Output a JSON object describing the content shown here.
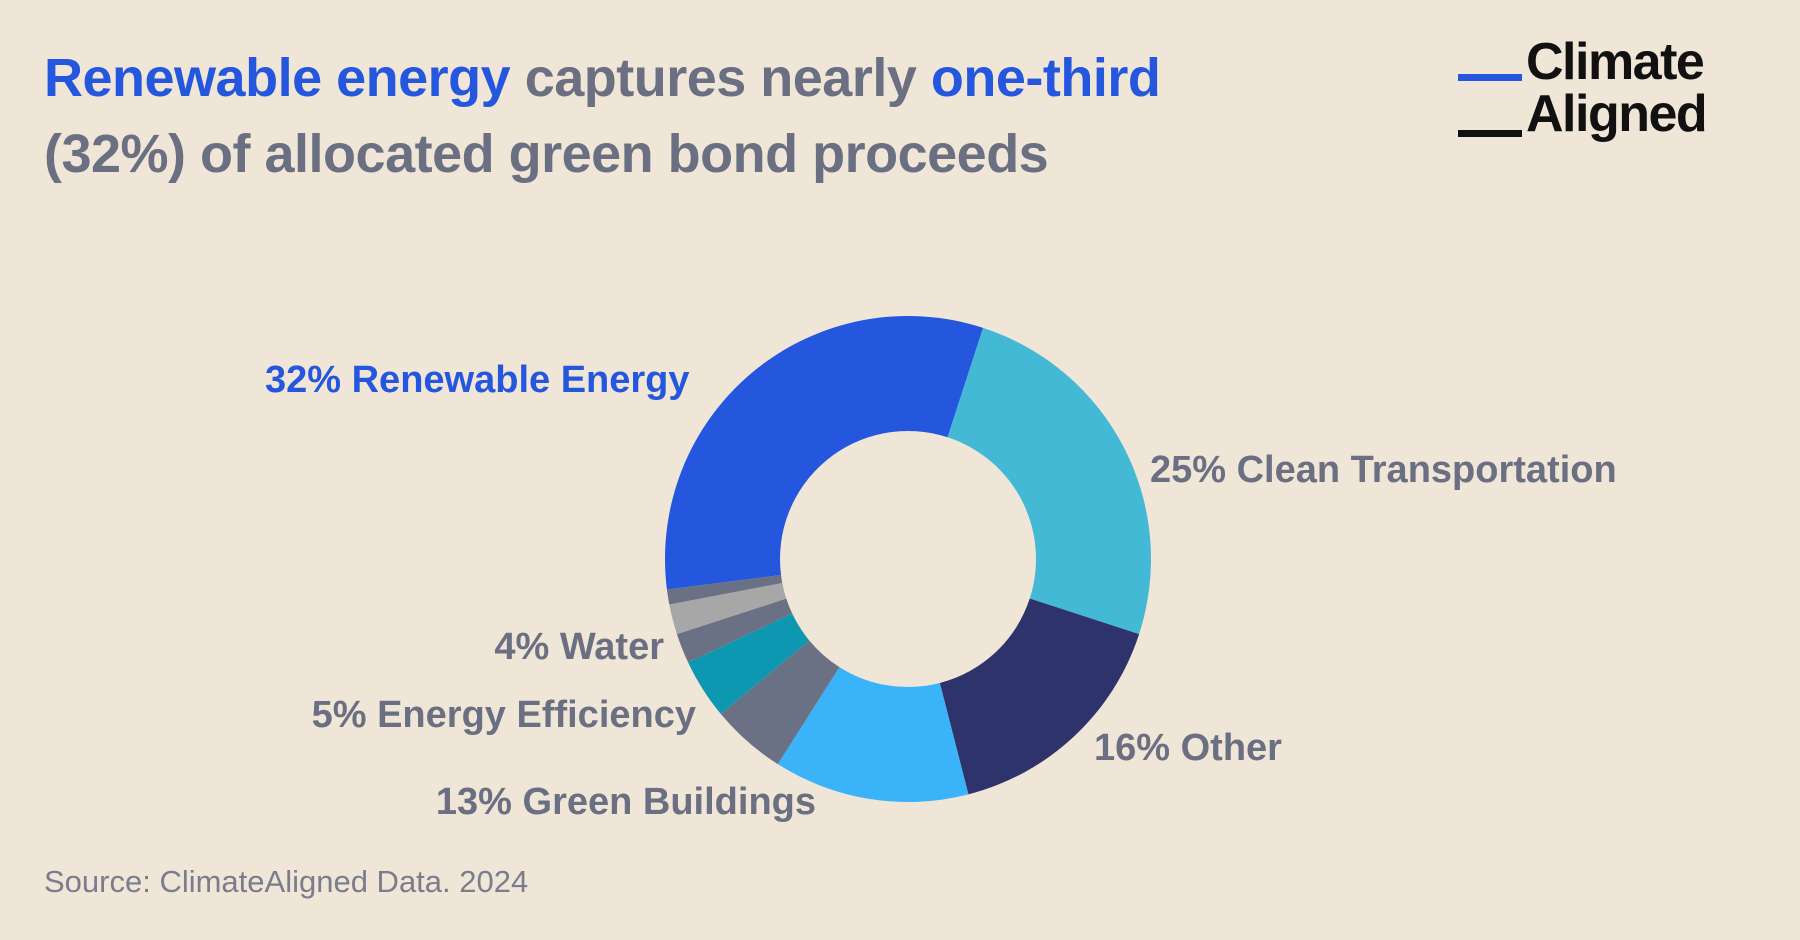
{
  "header": {
    "title_parts": [
      {
        "text": "Renewable energy",
        "highlight": true
      },
      {
        "text": " captures nearly ",
        "highlight": false
      },
      {
        "text": "one-third",
        "highlight": true
      },
      {
        "text": " (32%) of allocated green bond proceeds",
        "highlight": false
      }
    ]
  },
  "logo": {
    "line1": "Climate",
    "line2": "Aligned"
  },
  "source": "Source: ClimateAligned Data. 2024",
  "colors": {
    "background": "#f0e6d8",
    "highlight": "#2457de",
    "text_gray": "#6b6f82",
    "logo_dark": "#111111"
  },
  "chart_data": {
    "type": "pie",
    "subtype": "donut",
    "title": "Renewable energy captures nearly one-third (32%) of allocated green bond proceeds",
    "unit": "%",
    "slices": [
      {
        "label": "32% Renewable Energy",
        "category": "Renewable Energy",
        "value": 32,
        "color": "#2457de"
      },
      {
        "label": "25% Clean Transportation",
        "category": "Clean Transportation",
        "value": 25,
        "color": "#44b9d6"
      },
      {
        "label": "16% Other",
        "category": "Other",
        "value": 16,
        "color": "#2e336b"
      },
      {
        "label": "13% Green Buildings",
        "category": "Green Buildings",
        "value": 13,
        "color": "#3ab3f8"
      },
      {
        "label": "5% Energy Efficiency",
        "category": "Energy Efficiency",
        "value": 5,
        "color": "#6b7185"
      },
      {
        "label": "4% Water",
        "category": "Water",
        "value": 4,
        "color": "#0d97b0"
      },
      {
        "label": "",
        "category": "Unlabeled 1",
        "value": 2,
        "color": "#6b7185"
      },
      {
        "label": "",
        "category": "Unlabeled 2",
        "value": 2,
        "color": "#a7a7a7"
      },
      {
        "label": "",
        "category": "Unlabeled 3",
        "value": 1,
        "color": "#6b7185"
      }
    ],
    "start_category": "Renewable Energy",
    "direction": "clockwise"
  }
}
